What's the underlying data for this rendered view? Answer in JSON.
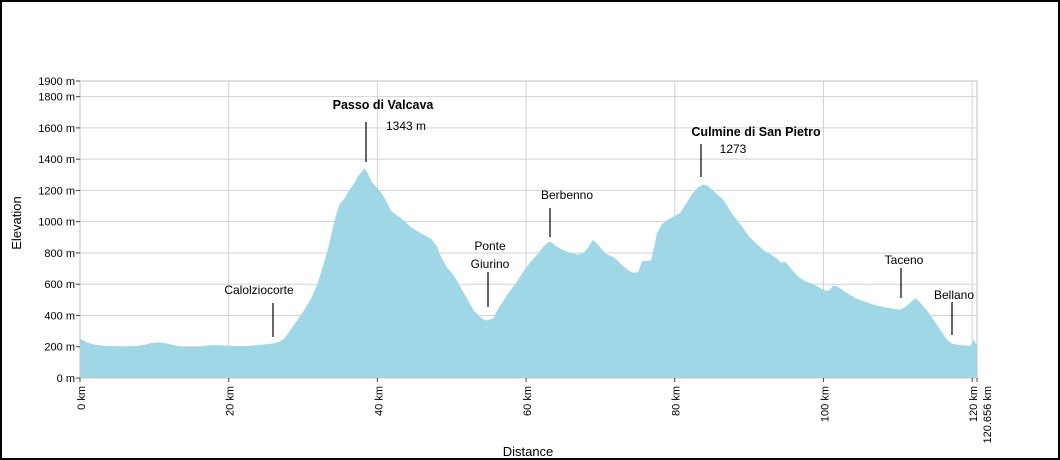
{
  "chart_data": {
    "type": "area",
    "title": "",
    "xlabel": "Distance",
    "ylabel": "Elevation",
    "x_unit": "km",
    "y_unit": "m",
    "xlim": [
      0,
      120.656
    ],
    "ylim": [
      0,
      1900
    ],
    "grid": true,
    "legend": "none",
    "colors": {
      "area_fill": "#A0D7E6",
      "grid": "#D2D2D2",
      "plot_border": "#C2C2C2",
      "tick": "#444444",
      "text": "#000000",
      "annotation_line": "#000000"
    },
    "x_ticks": [
      {
        "value": 0,
        "label": "0 km"
      },
      {
        "value": 20,
        "label": "20 km"
      },
      {
        "value": 40,
        "label": "40 km"
      },
      {
        "value": 60,
        "label": "60 km"
      },
      {
        "value": 80,
        "label": "80 km"
      },
      {
        "value": 100,
        "label": "100 km"
      },
      {
        "value": 120,
        "label": "120 km"
      },
      {
        "value": 120.656,
        "label": "120.656 km",
        "dx": 14
      }
    ],
    "y_ticks": [
      {
        "value": 0,
        "label": "0 m"
      },
      {
        "value": 200,
        "label": "200 m"
      },
      {
        "value": 400,
        "label": "400 m"
      },
      {
        "value": 600,
        "label": "600 m"
      },
      {
        "value": 800,
        "label": "800 m"
      },
      {
        "value": 1000,
        "label": "1000 m"
      },
      {
        "value": 1200,
        "label": "1200 m"
      },
      {
        "value": 1400,
        "label": "1400 m"
      },
      {
        "value": 1600,
        "label": "1600 m"
      },
      {
        "value": 1800,
        "label": "1800 m"
      },
      {
        "value": 1900,
        "label": "1900 m"
      }
    ],
    "profile_points": [
      [
        0,
        252
      ],
      [
        0.4,
        242
      ],
      [
        0.9,
        228
      ],
      [
        1.8,
        215
      ],
      [
        3,
        207
      ],
      [
        4.5,
        204
      ],
      [
        6,
        202
      ],
      [
        7.5,
        204
      ],
      [
        8.6,
        212
      ],
      [
        9.6,
        224
      ],
      [
        10.6,
        228
      ],
      [
        11.4,
        224
      ],
      [
        12.4,
        212
      ],
      [
        13.4,
        203
      ],
      [
        14.5,
        200
      ],
      [
        16,
        200
      ],
      [
        17,
        208
      ],
      [
        18.2,
        211
      ],
      [
        19.5,
        208
      ],
      [
        21,
        204
      ],
      [
        22.5,
        204
      ],
      [
        23.8,
        210
      ],
      [
        25,
        216
      ],
      [
        26,
        221
      ],
      [
        26.8,
        232
      ],
      [
        27.5,
        252
      ],
      [
        28.2,
        300
      ],
      [
        29.2,
        368
      ],
      [
        30.2,
        438
      ],
      [
        31.2,
        520
      ],
      [
        32,
        610
      ],
      [
        32.7,
        720
      ],
      [
        33.3,
        815
      ],
      [
        34.2,
        1003
      ],
      [
        34.9,
        1111
      ],
      [
        35.6,
        1150
      ],
      [
        36.1,
        1194
      ],
      [
        36.8,
        1240
      ],
      [
        37.4,
        1290
      ],
      [
        38.3,
        1343
      ],
      [
        38.8,
        1300
      ],
      [
        39.2,
        1257
      ],
      [
        40.6,
        1183
      ],
      [
        41.9,
        1067
      ],
      [
        43.3,
        1018
      ],
      [
        44.6,
        961
      ],
      [
        46,
        923
      ],
      [
        47.3,
        887
      ],
      [
        48,
        844
      ],
      [
        48.6,
        770
      ],
      [
        49.4,
        705
      ],
      [
        50.3,
        655
      ],
      [
        51.3,
        572
      ],
      [
        52.2,
        495
      ],
      [
        53,
        430
      ],
      [
        53.6,
        400
      ],
      [
        54.1,
        380
      ],
      [
        54.6,
        368
      ],
      [
        55.1,
        374
      ],
      [
        55.6,
        382
      ],
      [
        56.2,
        440
      ],
      [
        56.9,
        490
      ],
      [
        57.7,
        550
      ],
      [
        58.6,
        605
      ],
      [
        59.6,
        680
      ],
      [
        60.6,
        742
      ],
      [
        61.6,
        795
      ],
      [
        62.3,
        840
      ],
      [
        62.9,
        865
      ],
      [
        63.3,
        872
      ],
      [
        63.9,
        848
      ],
      [
        64.9,
        820
      ],
      [
        65.9,
        800
      ],
      [
        67,
        788
      ],
      [
        67.7,
        800
      ],
      [
        68.4,
        838
      ],
      [
        69,
        885
      ],
      [
        69.7,
        852
      ],
      [
        70.7,
        795
      ],
      [
        71.8,
        772
      ],
      [
        72.8,
        728
      ],
      [
        73.8,
        688
      ],
      [
        74.5,
        672
      ],
      [
        75.1,
        678
      ],
      [
        75.6,
        748
      ],
      [
        76.8,
        752
      ],
      [
        77.2,
        830
      ],
      [
        77.6,
        927
      ],
      [
        78.3,
        985
      ],
      [
        79,
        1010
      ],
      [
        79.9,
        1035
      ],
      [
        80.7,
        1055
      ],
      [
        81.5,
        1115
      ],
      [
        82.4,
        1180
      ],
      [
        83.1,
        1220
      ],
      [
        83.8,
        1238
      ],
      [
        84.4,
        1230
      ],
      [
        85.2,
        1198
      ],
      [
        85.9,
        1168
      ],
      [
        86.6,
        1135
      ],
      [
        87.7,
        1052
      ],
      [
        89,
        972
      ],
      [
        90,
        905
      ],
      [
        90.9,
        862
      ],
      [
        92,
        815
      ],
      [
        92.9,
        792
      ],
      [
        93.7,
        765
      ],
      [
        94.3,
        738
      ],
      [
        94.9,
        742
      ],
      [
        95.6,
        702
      ],
      [
        96.6,
        648
      ],
      [
        97.6,
        618
      ],
      [
        98.7,
        598
      ],
      [
        99.7,
        572
      ],
      [
        100.4,
        558
      ],
      [
        100.8,
        562
      ],
      [
        101.3,
        592
      ],
      [
        101.9,
        585
      ],
      [
        103,
        548
      ],
      [
        104.3,
        512
      ],
      [
        105.6,
        488
      ],
      [
        107,
        465
      ],
      [
        108.5,
        450
      ],
      [
        109.8,
        440
      ],
      [
        110.4,
        438
      ],
      [
        111.1,
        458
      ],
      [
        112,
        496
      ],
      [
        112.4,
        510
      ],
      [
        113.1,
        478
      ],
      [
        114.1,
        420
      ],
      [
        115,
        358
      ],
      [
        115.9,
        296
      ],
      [
        116.5,
        252
      ],
      [
        117.2,
        222
      ],
      [
        118,
        212
      ],
      [
        119,
        208
      ],
      [
        119.8,
        206
      ],
      [
        120.05,
        232
      ],
      [
        120.25,
        246
      ],
      [
        120.45,
        222
      ],
      [
        120.656,
        204
      ]
    ],
    "annotations": [
      {
        "name": "calolziocorte",
        "line": {
          "x": 273,
          "y1": 303,
          "y2": 337
        },
        "texts": [
          {
            "t": "Calolziocorte",
            "x": 259,
            "y": 294,
            "bold": false
          }
        ]
      },
      {
        "name": "passo-di-valcava",
        "peak_elevation_m": 1343,
        "line": {
          "x": 366,
          "y1": 122,
          "y2": 162
        },
        "texts": [
          {
            "t": "Passo di Valcava",
            "x": 383,
            "y": 109,
            "bold": true
          },
          {
            "t": "1343 m",
            "x": 406,
            "y": 130,
            "bold": false
          }
        ]
      },
      {
        "name": "ponte-giurino",
        "line": {
          "x": 488,
          "y1": 272,
          "y2": 307
        },
        "texts": [
          {
            "t": "Ponte",
            "x": 490,
            "y": 250,
            "bold": false
          },
          {
            "t": "Giurino",
            "x": 490,
            "y": 268,
            "bold": false
          }
        ]
      },
      {
        "name": "berbenno",
        "line": {
          "x": 550,
          "y1": 208,
          "y2": 237
        },
        "texts": [
          {
            "t": "Berbenno",
            "x": 567,
            "y": 199,
            "bold": false
          }
        ]
      },
      {
        "name": "culmine-di-san-pietro",
        "peak_elevation_m": 1273,
        "line": {
          "x": 701,
          "y1": 144,
          "y2": 177
        },
        "texts": [
          {
            "t": "Culmine di San Pietro",
            "x": 756,
            "y": 136,
            "bold": true
          },
          {
            "t": "1273",
            "x": 733,
            "y": 153,
            "bold": false
          }
        ]
      },
      {
        "name": "taceno",
        "line": {
          "x": 901,
          "y1": 268,
          "y2": 298
        },
        "texts": [
          {
            "t": "Taceno",
            "x": 904,
            "y": 264,
            "bold": false
          }
        ]
      },
      {
        "name": "bellano",
        "line": {
          "x": 952,
          "y1": 302,
          "y2": 335
        },
        "texts": [
          {
            "t": "Bellano",
            "x": 954,
            "y": 299,
            "bold": false
          }
        ]
      }
    ]
  }
}
